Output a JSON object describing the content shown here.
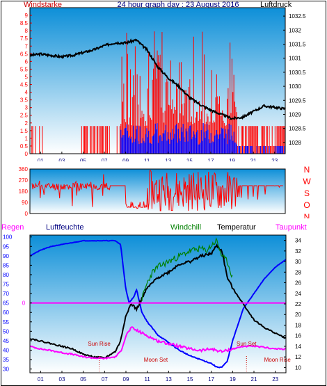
{
  "colors": {
    "red": "#ff0000",
    "blue": "#0000ff",
    "navy": "#000080",
    "black": "#000000",
    "green": "#008000",
    "magenta": "#ff00ff",
    "darkred": "#cc0000",
    "sky_top": "#0d8fd8",
    "sky_bottom": "#ffffff"
  },
  "header": {
    "title": "24 hour graph day : 23 August 2016",
    "wind_label": "Windstarke",
    "pressure_label": "Luftdruck"
  },
  "chart_data": [
    {
      "id": "wind_pressure",
      "type": "line",
      "x_ticks": [
        "01",
        "03",
        "05",
        "07",
        "09",
        "11",
        "13",
        "15",
        "17",
        "19",
        "21",
        "23"
      ],
      "x_range": [
        0,
        24
      ],
      "left_axis": {
        "label": "Windstarke",
        "ticks": [
          "0",
          "0.5",
          "1",
          "1.5",
          "2",
          "2.5",
          "3",
          "3.5",
          "4",
          "4.5",
          "5",
          "5.5",
          "6",
          "6.5",
          "7",
          "7.5",
          "8",
          "8.5",
          "9"
        ],
        "range": [
          0,
          9.5
        ]
      },
      "right_axis": {
        "label": "Luftdruck",
        "ticks": [
          "1028",
          "1028.5",
          "1029",
          "1029.5",
          "1030",
          "1030.5",
          "1031",
          "1031.5",
          "1032",
          "1032.5"
        ],
        "range": [
          1027.6,
          1032.8
        ]
      },
      "series": [
        {
          "name": "Luftdruck",
          "axis": "right",
          "color": "#000000",
          "x": [
            0,
            1,
            2,
            3,
            4,
            5,
            6,
            7,
            8,
            9,
            10,
            11,
            12,
            13,
            14,
            15,
            16,
            17,
            18,
            19,
            20,
            21,
            22,
            23,
            24
          ],
          "y": [
            1031.1,
            1031.15,
            1031.1,
            1031.05,
            1031.1,
            1031.2,
            1031.3,
            1031.45,
            1031.55,
            1031.55,
            1031.65,
            1031.3,
            1030.7,
            1030.3,
            1030.0,
            1029.6,
            1029.35,
            1029.15,
            1029.0,
            1028.85,
            1028.9,
            1029.1,
            1029.3,
            1029.25,
            1029.2
          ]
        }
      ]
    },
    {
      "id": "wind_direction",
      "type": "line",
      "x_ticks": [
        "01",
        "03",
        "05",
        "07",
        "09",
        "11",
        "13",
        "15",
        "17",
        "19",
        "21",
        "23"
      ],
      "left_axis": {
        "ticks": [
          "0",
          "90",
          "180",
          "270",
          "360"
        ],
        "range": [
          0,
          360
        ]
      },
      "right_axis": {
        "ticks": [
          "N",
          "W",
          "S",
          "O",
          "N"
        ]
      }
    },
    {
      "id": "temperature_humidity",
      "type": "line",
      "legend": [
        "Regen",
        "Luftfeuchte",
        "Windchill",
        "Temperatur",
        "Taupunkt"
      ],
      "x_ticks": [
        "01",
        "03",
        "05",
        "07",
        "09",
        "11",
        "13",
        "15",
        "17",
        "19",
        "21",
        "23"
      ],
      "x_range": [
        0,
        24
      ],
      "left_axis": {
        "label": "Luftfeuchte",
        "ticks": [
          "30",
          "35",
          "40",
          "45",
          "50",
          "55",
          "60",
          "65",
          "70",
          "75",
          "80",
          "85",
          "90",
          "95",
          "100"
        ],
        "range": [
          28,
          101
        ]
      },
      "right_axis": {
        "label": "Temperatur",
        "ticks": [
          "10",
          "12",
          "14",
          "16",
          "18",
          "20",
          "22",
          "24",
          "26",
          "28",
          "30",
          "32",
          "34"
        ],
        "range": [
          9,
          35
        ]
      },
      "rain_zero": "0",
      "annotations": [
        {
          "text": "Sun Rise",
          "x": 6.5
        },
        {
          "text": "Sun Set",
          "x": 20.3
        },
        {
          "text": "Moon Set",
          "x": 11.8
        },
        {
          "text": "Moon Rise",
          "x": 23.2
        }
      ],
      "series": [
        {
          "name": "Luftfeuchte",
          "axis": "left",
          "color": "#0000ff",
          "x": [
            0,
            1,
            2,
            3,
            4,
            5,
            6,
            7,
            8,
            8.5,
            9,
            9.3,
            9.7,
            10,
            10.5,
            11,
            12,
            13,
            14,
            15,
            16,
            17,
            17.5,
            18,
            18.5,
            19,
            20,
            21,
            22,
            23,
            24
          ],
          "y": [
            90,
            93,
            95,
            96,
            97,
            98,
            98,
            98,
            98,
            96,
            72,
            65,
            68,
            72,
            60,
            55,
            48,
            44,
            40,
            37,
            35,
            33,
            31,
            31,
            34,
            45,
            62,
            70,
            78,
            84,
            88
          ]
        },
        {
          "name": "Temperatur",
          "axis": "right",
          "color": "#000000",
          "x": [
            0,
            1,
            2,
            3,
            4,
            5,
            6,
            7,
            8,
            8.5,
            9,
            9.5,
            10,
            10.5,
            11,
            12,
            13,
            14,
            15,
            16,
            17,
            17.5,
            18,
            18.5,
            19,
            20,
            21,
            22,
            23,
            24
          ],
          "y": [
            15.5,
            15,
            14.5,
            14,
            13.5,
            12.5,
            12,
            11.8,
            13,
            15,
            20,
            22,
            21,
            23,
            25,
            27,
            28,
            29.5,
            30,
            31,
            31.5,
            33,
            32,
            27,
            25,
            22,
            19,
            17.5,
            16.5,
            15.5
          ]
        },
        {
          "name": "Windchill",
          "axis": "right",
          "color": "#008000",
          "x": [
            10.5,
            11,
            11.5,
            12,
            13,
            14,
            15,
            16,
            16.5,
            17,
            17.5,
            18,
            18.5,
            19
          ],
          "y": [
            23,
            26,
            28,
            29,
            30,
            31,
            32,
            32.5,
            32,
            33,
            34,
            31,
            30,
            27
          ]
        },
        {
          "name": "Taupunkt",
          "axis": "right",
          "color": "#ff00ff",
          "x": [
            0,
            1,
            2,
            3,
            4,
            5,
            6,
            7,
            8,
            8.5,
            9,
            9.5,
            10,
            11,
            12,
            13,
            14,
            15,
            16,
            17,
            18,
            19,
            20,
            21,
            22,
            23,
            24
          ],
          "y": [
            14,
            13.5,
            13.2,
            12.8,
            12.5,
            12,
            11.8,
            11.7,
            12,
            13,
            16,
            17.5,
            17,
            16,
            15,
            14.5,
            14,
            13.5,
            13.2,
            13.5,
            13,
            13.5,
            14,
            14,
            13.8,
            13.5,
            13.5
          ]
        },
        {
          "name": "Regen",
          "axis": "left",
          "color": "#ff00ff",
          "x": [
            0,
            24
          ],
          "y": [
            65,
            65
          ]
        }
      ]
    }
  ]
}
